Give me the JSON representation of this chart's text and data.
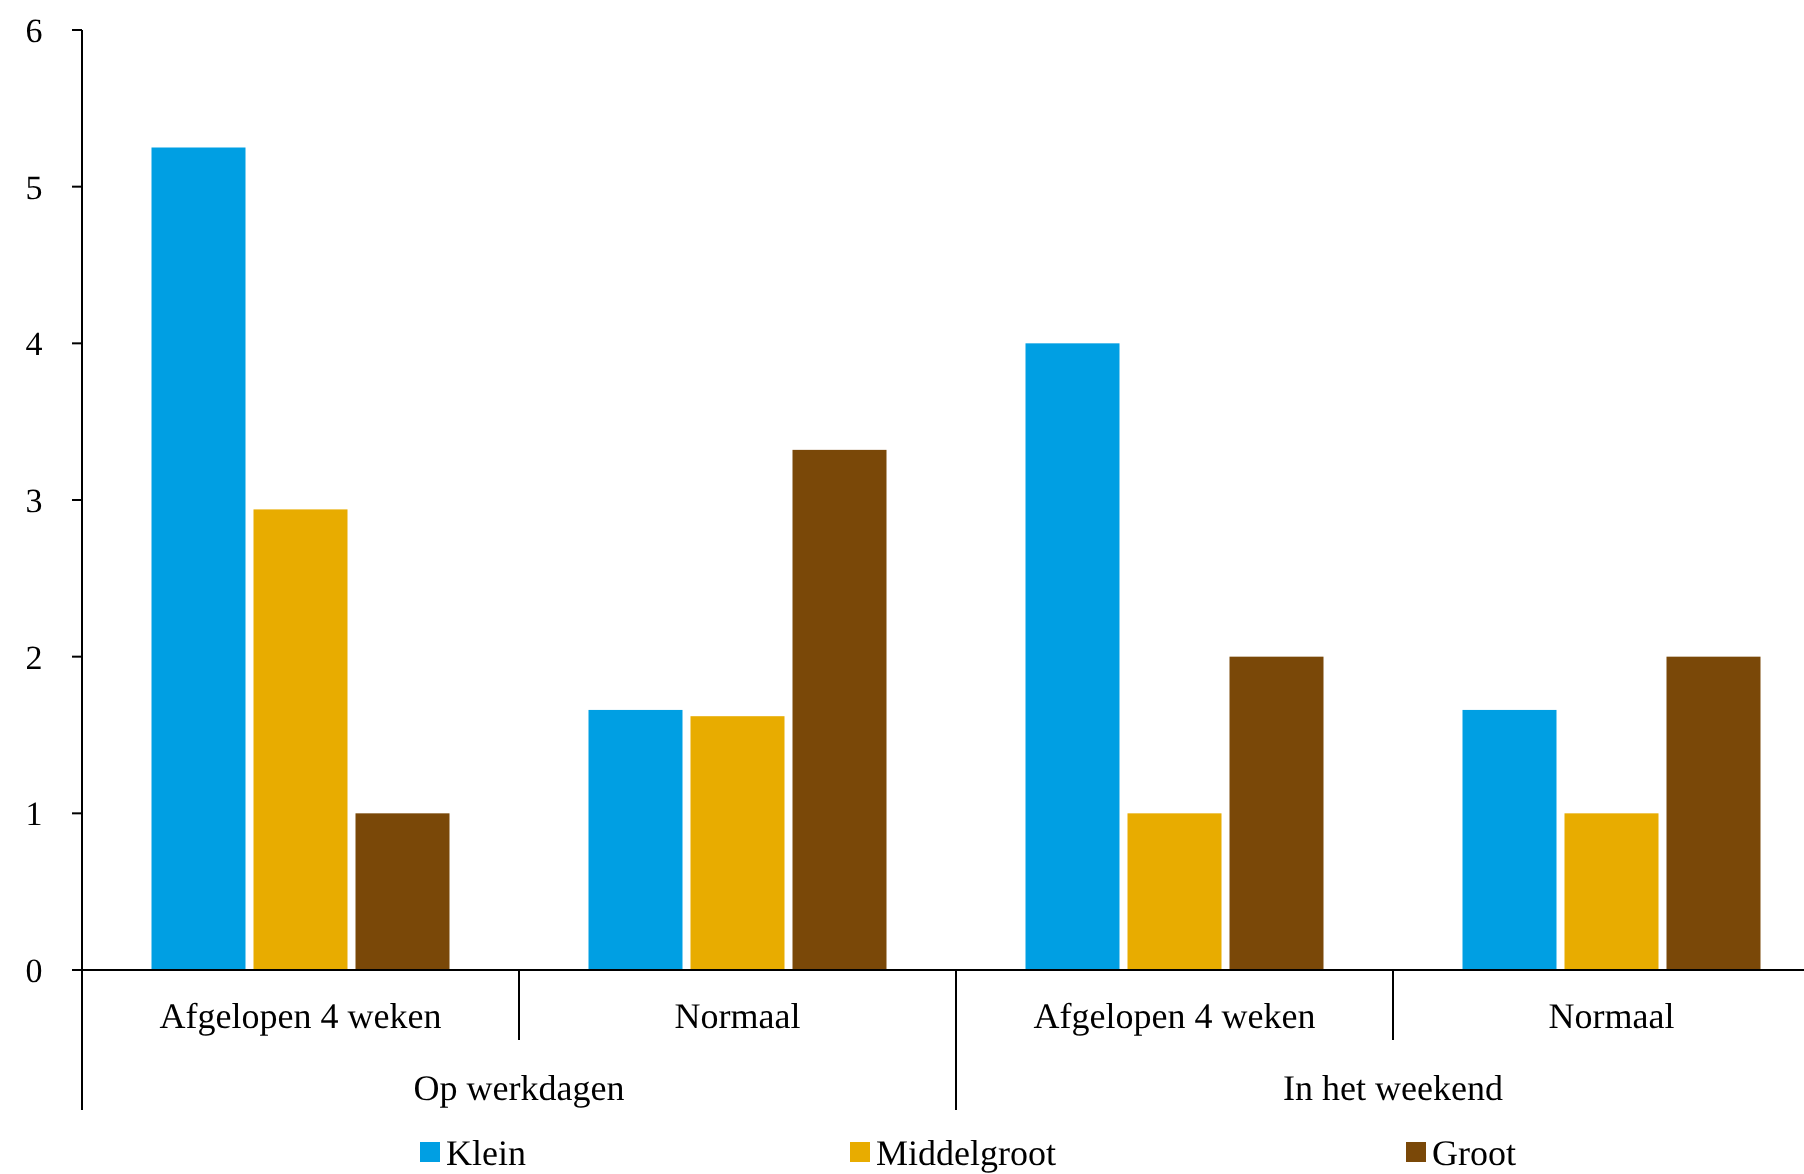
{
  "chart_data": {
    "type": "bar",
    "categories": [
      "Afgelopen 4 weken",
      "Normaal",
      "Afgelopen 4 weken",
      "Normaal"
    ],
    "annotations": [
      "Op werkdagen",
      "In het weekend"
    ],
    "series": [
      {
        "name": "Klein",
        "color": "#009fe3",
        "values": [
          5.25,
          1.66,
          4.0,
          1.66
        ]
      },
      {
        "name": "Middelgroot",
        "color": "#e8ac00",
        "values": [
          2.94,
          1.62,
          1.0,
          1.0
        ]
      },
      {
        "name": "Groot",
        "color": "#7a4808",
        "values": [
          1.0,
          3.32,
          2.0,
          2.0
        ]
      }
    ],
    "ylim": [
      0,
      6
    ],
    "yticks": [
      0,
      1,
      2,
      3,
      4,
      5,
      6
    ],
    "grid": false,
    "legend": "bottom"
  }
}
